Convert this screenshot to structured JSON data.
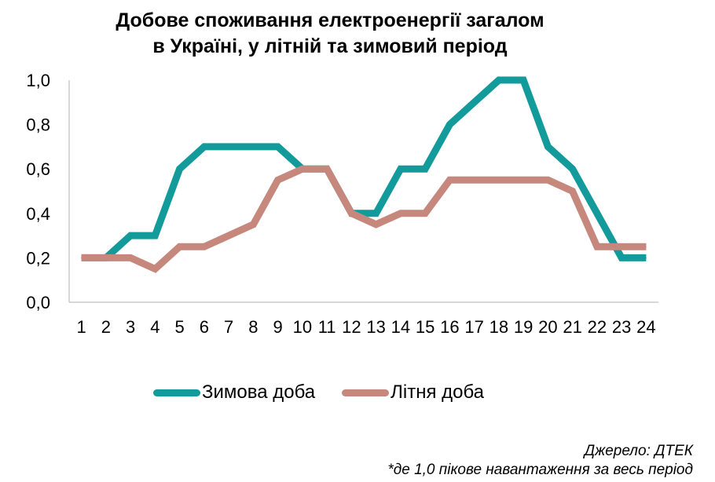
{
  "title": {
    "line1": "Добове споживання електроенергії загалом",
    "line2": "в Україні, у літній та зимовий період"
  },
  "chart_data": {
    "type": "line",
    "x": [
      1,
      2,
      3,
      4,
      5,
      6,
      7,
      8,
      9,
      10,
      11,
      12,
      13,
      14,
      15,
      16,
      17,
      18,
      19,
      20,
      21,
      22,
      23,
      24
    ],
    "x_tick_labels": [
      "1",
      "2",
      "3",
      "4",
      "5",
      "6",
      "7",
      "8",
      "9",
      "10",
      "11",
      "12",
      "13",
      "14",
      "15",
      "16",
      "17",
      "18",
      "19",
      "20",
      "21",
      "22",
      "23",
      "24"
    ],
    "y_tick_labels": [
      "0,0",
      "0,2",
      "0,4",
      "0,6",
      "0,8",
      "1,0"
    ],
    "y_ticks": [
      0,
      0.2,
      0.4,
      0.6,
      0.8,
      1.0
    ],
    "ylim": [
      0,
      1.0
    ],
    "grid": false,
    "legend_position": "bottom",
    "series": [
      {
        "name": "Зимова доба",
        "color": "#139a9a",
        "values": [
          0.2,
          0.2,
          0.3,
          0.3,
          0.6,
          0.7,
          0.7,
          0.7,
          0.7,
          0.6,
          0.6,
          0.4,
          0.4,
          0.6,
          0.6,
          0.8,
          0.9,
          1.0,
          1.0,
          0.7,
          0.6,
          0.4,
          0.2,
          0.2
        ]
      },
      {
        "name": "Літня доба",
        "color": "#c6877d",
        "values": [
          0.2,
          0.2,
          0.2,
          0.15,
          0.25,
          0.25,
          0.3,
          0.35,
          0.55,
          0.6,
          0.6,
          0.4,
          0.35,
          0.4,
          0.4,
          0.55,
          0.55,
          0.55,
          0.55,
          0.55,
          0.5,
          0.25,
          0.25,
          0.25
        ]
      }
    ]
  },
  "footer": {
    "source": "Джерело: ДТЕК",
    "note": "*де 1,0 пікове навантаження за весь період"
  }
}
